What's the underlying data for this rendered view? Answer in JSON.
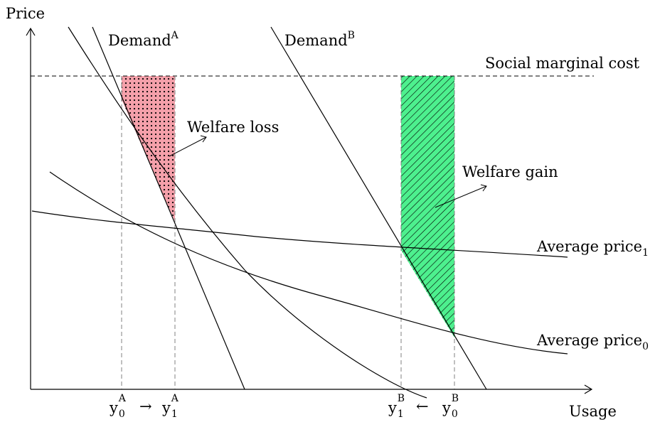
{
  "axes": {
    "y_label": "Price",
    "x_label": "Usage"
  },
  "curves": {
    "demand_a": {
      "name": "Demand",
      "sup": "A"
    },
    "demand_b": {
      "name": "Demand",
      "sup": "B"
    },
    "social_cost": "Social marginal cost",
    "avg_price_1": {
      "name": "Average price",
      "sub": "1"
    },
    "avg_price_0": {
      "name": "Average price",
      "sub": "0"
    }
  },
  "annotations": {
    "welfare_loss": "Welfare loss",
    "welfare_gain": "Welfare gain"
  },
  "ticks": {
    "a0": {
      "base": "y",
      "sub": "0",
      "sup": "A"
    },
    "a1": {
      "base": "y",
      "sub": "1",
      "sup": "A"
    },
    "b1": {
      "base": "y",
      "sub": "1",
      "sup": "B"
    },
    "b0": {
      "base": "y",
      "sub": "0",
      "sup": "B"
    },
    "arrow_right": "→",
    "arrow_left": "←"
  },
  "colors": {
    "welfare_loss_fill": "#f4a0aa",
    "welfare_gain_fill": "#4df08e",
    "stroke": "#000000",
    "guide": "#808080"
  }
}
